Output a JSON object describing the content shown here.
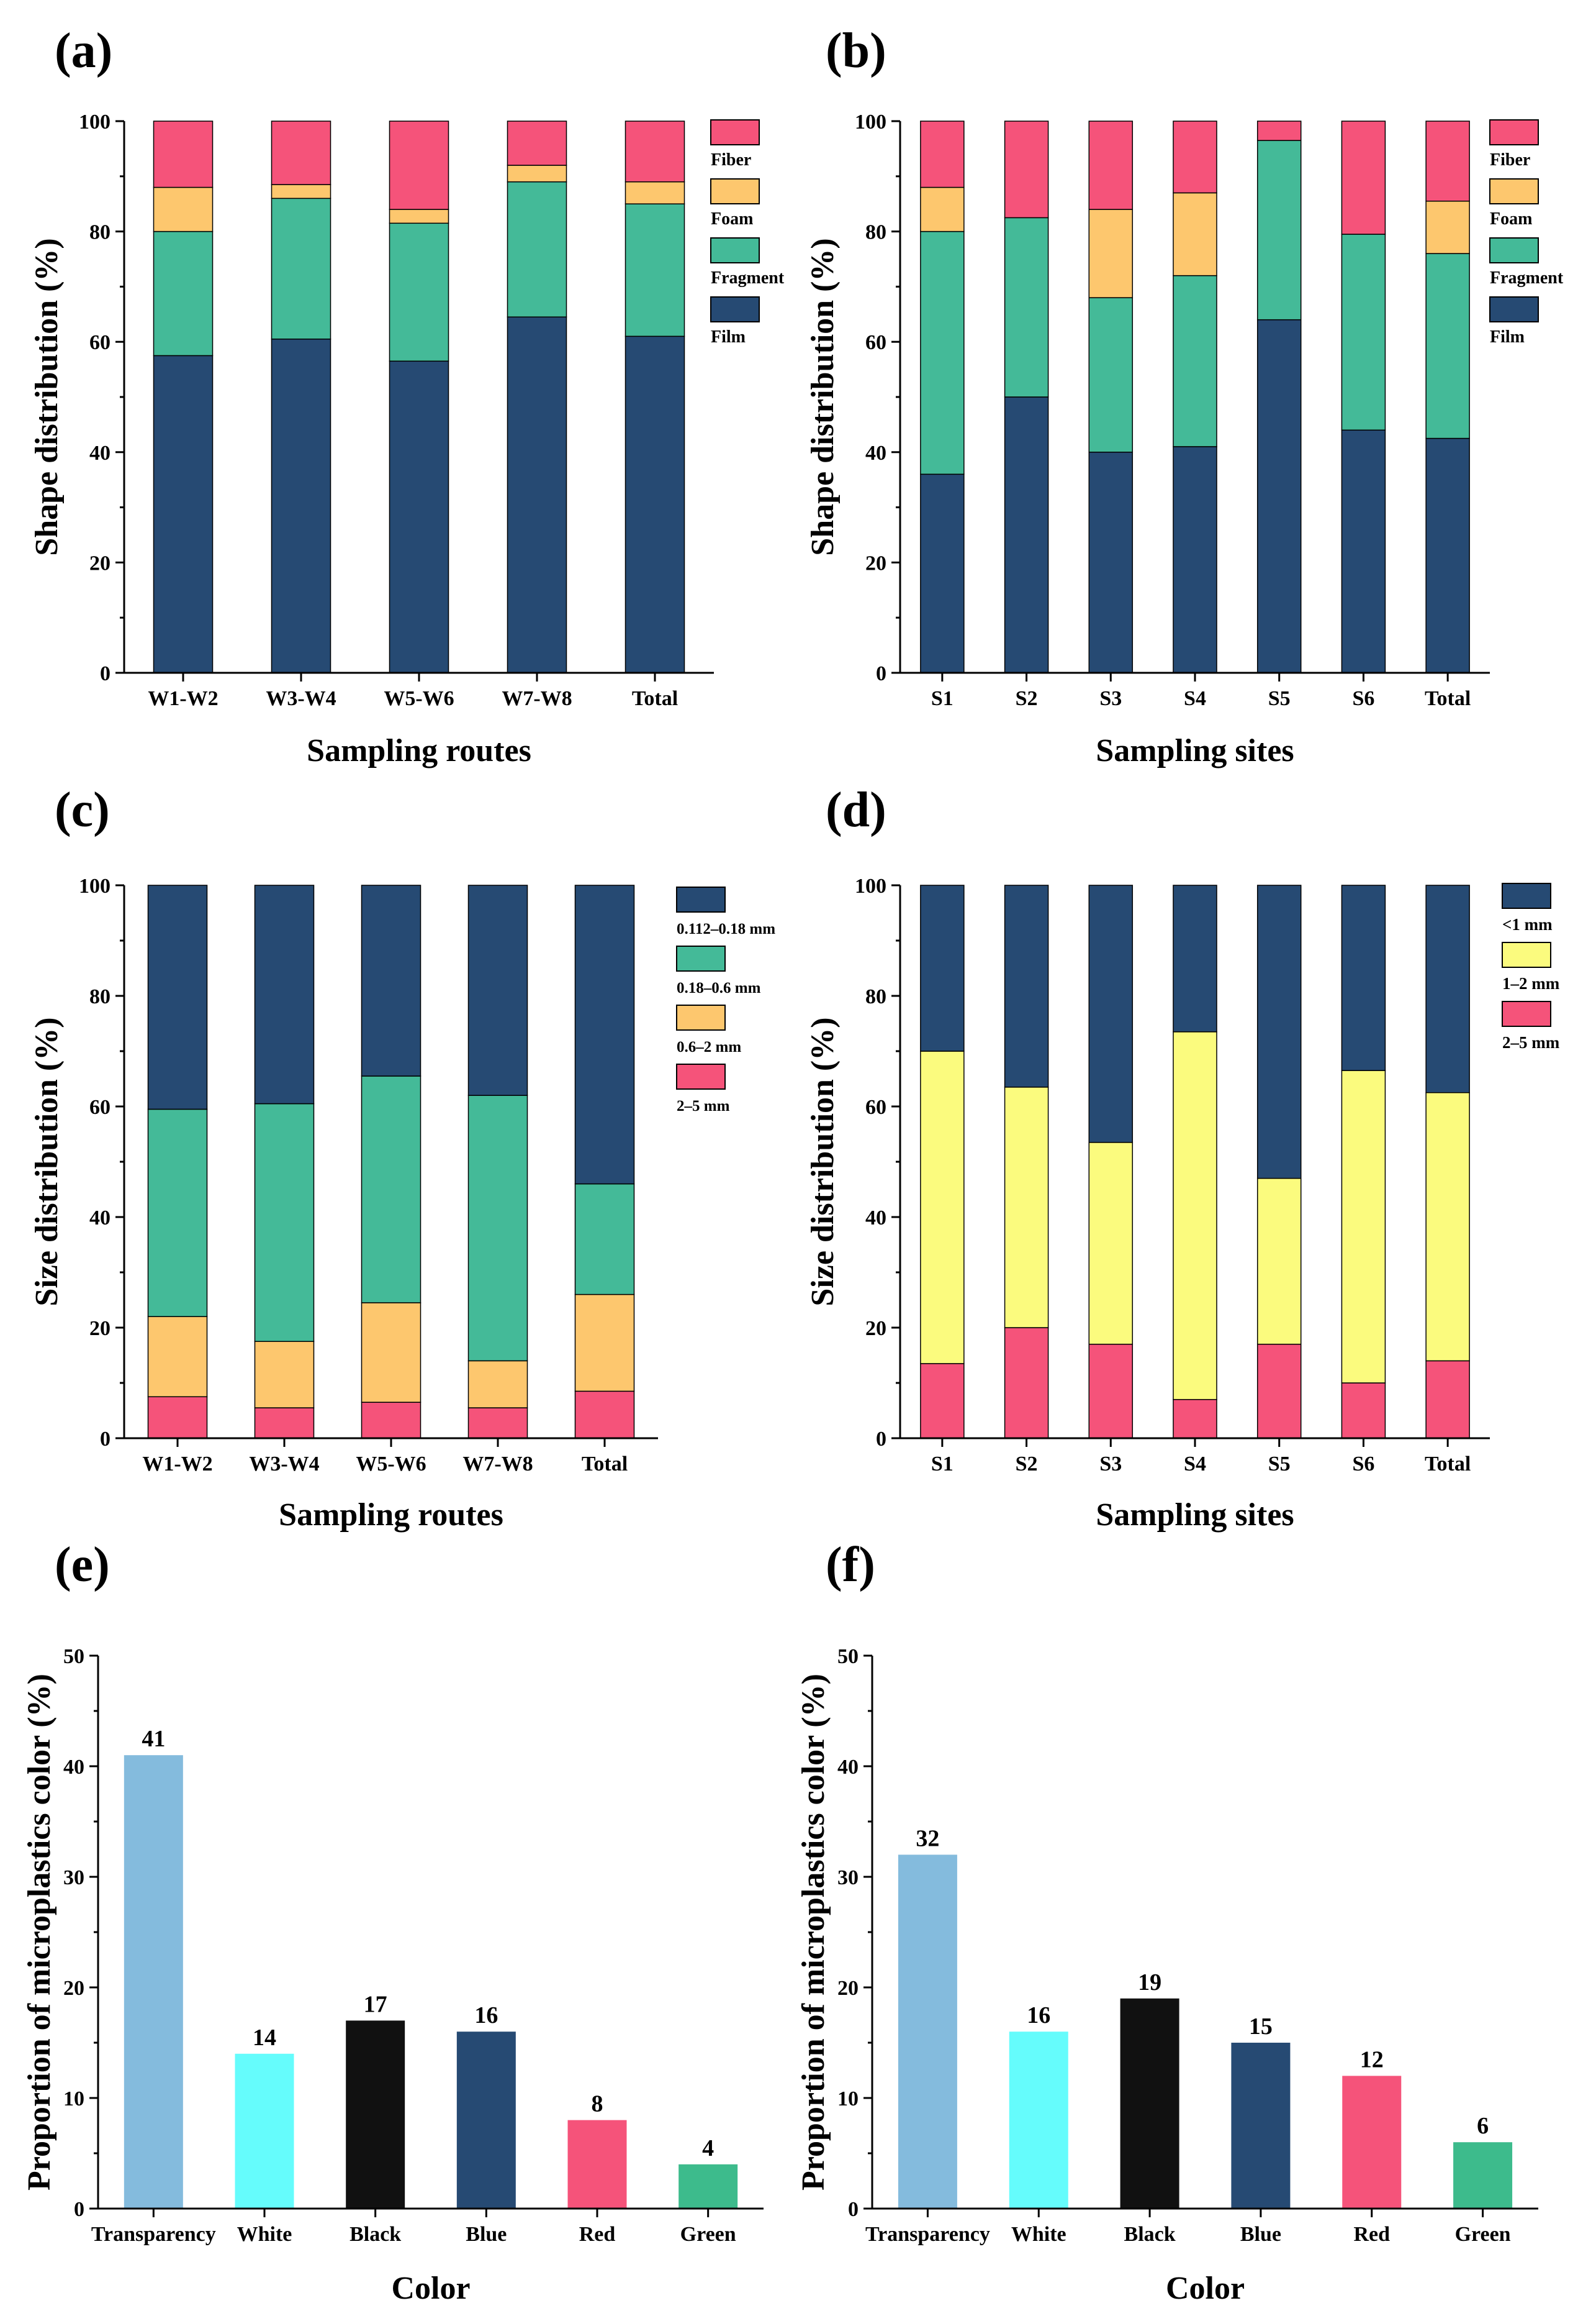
{
  "figure": {
    "panel_labels": [
      "(a)",
      "(b)",
      "(c)",
      "(d)",
      "(e)",
      "(f)"
    ]
  },
  "colors": {
    "film": "#264a73",
    "fragment": "#44ba98",
    "foam": "#fdc76e",
    "fiber": "#f5537a",
    "size_small": "#264a73",
    "size_mid": "#44ba98",
    "size_large": "#fdc76e",
    "size_xl": "#f5537a",
    "d_lt1": "#264a73",
    "d_1to2": "#fbfb7e",
    "d_2to5": "#f5537a",
    "transparency": "#84bbdd",
    "white": "#65fcfc",
    "black": "#111111",
    "blue": "#264a73",
    "red": "#f5537a",
    "green": "#3dbb8c"
  },
  "chart_data": [
    {
      "panel": "(a)",
      "type": "bar",
      "stacked": true,
      "categories": [
        "W1-W2",
        "W3-W4",
        "W5-W6",
        "W7-W8",
        "Total"
      ],
      "series": [
        {
          "name": "Film",
          "color_key": "film",
          "values": [
            57.5,
            60.5,
            56.5,
            64.5,
            61
          ]
        },
        {
          "name": "Fragment",
          "color_key": "fragment",
          "values": [
            22.5,
            25.5,
            25,
            24.5,
            24
          ]
        },
        {
          "name": "Foam",
          "color_key": "foam",
          "values": [
            8,
            2.5,
            2.5,
            3,
            4
          ]
        },
        {
          "name": "Fiber",
          "color_key": "fiber",
          "values": [
            12,
            11.5,
            16,
            8,
            11
          ]
        }
      ],
      "legend_order": [
        "Fiber",
        "Foam",
        "Fragment",
        "Film"
      ],
      "xlabel": "Sampling routes",
      "ylabel": "Shape distribution (%)",
      "ylim": [
        0,
        100
      ],
      "yticks": [
        0,
        20,
        40,
        60,
        80,
        100
      ]
    },
    {
      "panel": "(b)",
      "type": "bar",
      "stacked": true,
      "categories": [
        "S1",
        "S2",
        "S3",
        "S4",
        "S5",
        "S6",
        "Total"
      ],
      "series": [
        {
          "name": "Film",
          "color_key": "film",
          "values": [
            36,
            50,
            40,
            41,
            64,
            44,
            42.5
          ]
        },
        {
          "name": "Fragment",
          "color_key": "fragment",
          "values": [
            44,
            32.5,
            28,
            31,
            32.5,
            35.5,
            33.5
          ]
        },
        {
          "name": "Foam",
          "color_key": "foam",
          "values": [
            8,
            0,
            16,
            15,
            0,
            0,
            9.5
          ]
        },
        {
          "name": "Fiber",
          "color_key": "fiber",
          "values": [
            12,
            17.5,
            16,
            13,
            3.5,
            20.5,
            14.5
          ]
        }
      ],
      "legend_order": [
        "Fiber",
        "Foam",
        "Fragment",
        "Film"
      ],
      "xlabel": "Sampling sites",
      "ylabel": "Shape distribution (%)",
      "ylim": [
        0,
        100
      ],
      "yticks": [
        0,
        20,
        40,
        60,
        80,
        100
      ]
    },
    {
      "panel": "(c)",
      "type": "bar",
      "stacked": true,
      "categories": [
        "W1-W2",
        "W3-W4",
        "W5-W6",
        "W7-W8",
        "Total"
      ],
      "series": [
        {
          "name": "2–5 mm",
          "color_key": "size_xl",
          "values": [
            7.5,
            5.5,
            6.5,
            5.5,
            8.5
          ]
        },
        {
          "name": "0.6–2 mm",
          "color_key": "size_large",
          "values": [
            14.5,
            12,
            18,
            8.5,
            17.5
          ]
        },
        {
          "name": "0.18–0.6 mm",
          "color_key": "size_mid",
          "values": [
            37.5,
            43,
            41,
            48,
            20
          ]
        },
        {
          "name": "0.112–0.18 mm",
          "color_key": "size_small",
          "values": [
            40.5,
            39.5,
            34.5,
            38,
            54
          ]
        }
      ],
      "legend_order": [
        "0.112–0.18 mm",
        "0.18–0.6 mm",
        "0.6–2 mm",
        "2–5 mm"
      ],
      "xlabel": "Sampling routes",
      "ylabel": "Size distribution (%)",
      "ylim": [
        0,
        100
      ],
      "yticks": [
        0,
        20,
        40,
        60,
        80,
        100
      ]
    },
    {
      "panel": "(d)",
      "type": "bar",
      "stacked": true,
      "categories": [
        "S1",
        "S2",
        "S3",
        "S4",
        "S5",
        "S6",
        "Total"
      ],
      "series": [
        {
          "name": "2–5 mm",
          "color_key": "d_2to5",
          "values": [
            13.5,
            20,
            17,
            7,
            17,
            10,
            14
          ]
        },
        {
          "name": "1–2 mm",
          "color_key": "d_1to2",
          "values": [
            56.5,
            43.5,
            36.5,
            66.5,
            30,
            56.5,
            48.5
          ]
        },
        {
          "name": "<1 mm",
          "color_key": "d_lt1",
          "values": [
            30,
            36.5,
            46.5,
            26.5,
            53,
            33.5,
            37.5
          ]
        }
      ],
      "legend_order": [
        "<1 mm",
        "1–2 mm",
        "2–5 mm"
      ],
      "xlabel": "Sampling sites",
      "ylabel": "Size distribution (%)",
      "ylim": [
        0,
        100
      ],
      "yticks": [
        0,
        20,
        40,
        60,
        80,
        100
      ]
    },
    {
      "panel": "(e)",
      "type": "bar",
      "stacked": false,
      "categories": [
        "Transparency",
        "White",
        "Black",
        "Blue",
        "Red",
        "Green"
      ],
      "values": [
        41,
        14,
        17,
        16,
        8,
        4
      ],
      "value_labels": [
        "41",
        "14",
        "17",
        "16",
        "8",
        "4"
      ],
      "color_keys": [
        "transparency",
        "white",
        "black",
        "blue",
        "red",
        "green"
      ],
      "xlabel": "Color",
      "ylabel": "Proportion of microplastics color  (%)",
      "ylim": [
        0,
        50
      ],
      "yticks": [
        0,
        10,
        20,
        30,
        40,
        50
      ]
    },
    {
      "panel": "(f)",
      "type": "bar",
      "stacked": false,
      "categories": [
        "Transparency",
        "White",
        "Black",
        "Blue",
        "Red",
        "Green"
      ],
      "values": [
        32,
        16,
        19,
        15,
        12,
        6
      ],
      "value_labels": [
        "32",
        "16",
        "19",
        "15",
        "12",
        "6"
      ],
      "color_keys": [
        "transparency",
        "white",
        "black",
        "blue",
        "red",
        "green"
      ],
      "xlabel": "Color",
      "ylabel": "Proportion of microplastics color  (%)",
      "ylim": [
        0,
        50
      ],
      "yticks": [
        0,
        10,
        20,
        30,
        40,
        50
      ]
    }
  ]
}
